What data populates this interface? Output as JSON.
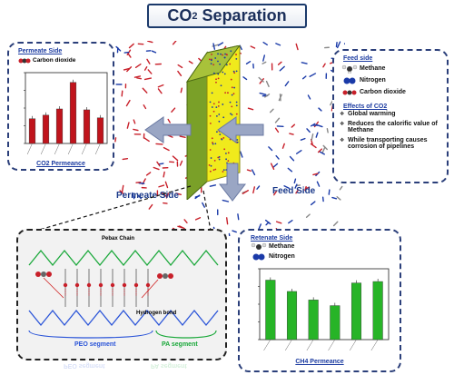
{
  "title": {
    "text": "CO",
    "sub": "2",
    "suffix": " Separation"
  },
  "permeate_panel": {
    "heading": "Permeate Side",
    "legend": "Carbon dioxide",
    "caption": "CO2 Permeance",
    "colors": {
      "bar": "#c0141c"
    }
  },
  "retentate_panel": {
    "heading": "Retenate Side",
    "legend_methane": "Methane",
    "legend_nitrogen": "Nitrogen",
    "caption": "CH4 Permeance",
    "colors": {
      "bar": "#27b427"
    }
  },
  "feed_panel": {
    "heading": "Feed side",
    "legend": [
      "Methane",
      "Nitrogen",
      "Carbon dioxide"
    ],
    "effects_heading": "Effects of CO2",
    "effects": [
      "Global warming",
      "Reduces the calorific value of Methane",
      "While transporting causes corrosion of pipelines"
    ]
  },
  "labels": {
    "permeate_side": "Permeate Side",
    "feed_side": "Feed Side"
  },
  "mechanism": {
    "chain_label": "Pebax Chain",
    "bond_label": "Hydrogen bond",
    "peo_label": "PEO segment",
    "pa_label": "PA segment",
    "colors": {
      "peo": "#2a54d8",
      "pa": "#1aa83a"
    }
  },
  "colors": {
    "membrane": "#f0ea1c",
    "membrane_edge": "#5c7a1a",
    "co2": "#c8202a",
    "n2": "#1a3aa8",
    "ch4": "#d8d8d8"
  },
  "chart_data": [
    {
      "type": "bar",
      "values": [
        2.8,
        3.2,
        3.9,
        6.9,
        3.8,
        2.9
      ],
      "ylim": [
        0,
        8
      ],
      "title": "",
      "xlabel": "",
      "ylabel": ""
    },
    {
      "type": "bar",
      "values": [
        8.4,
        6.8,
        5.6,
        4.8,
        8.0,
        8.2
      ],
      "ylim": [
        0,
        10
      ],
      "title": "",
      "xlabel": "",
      "ylabel": ""
    }
  ]
}
